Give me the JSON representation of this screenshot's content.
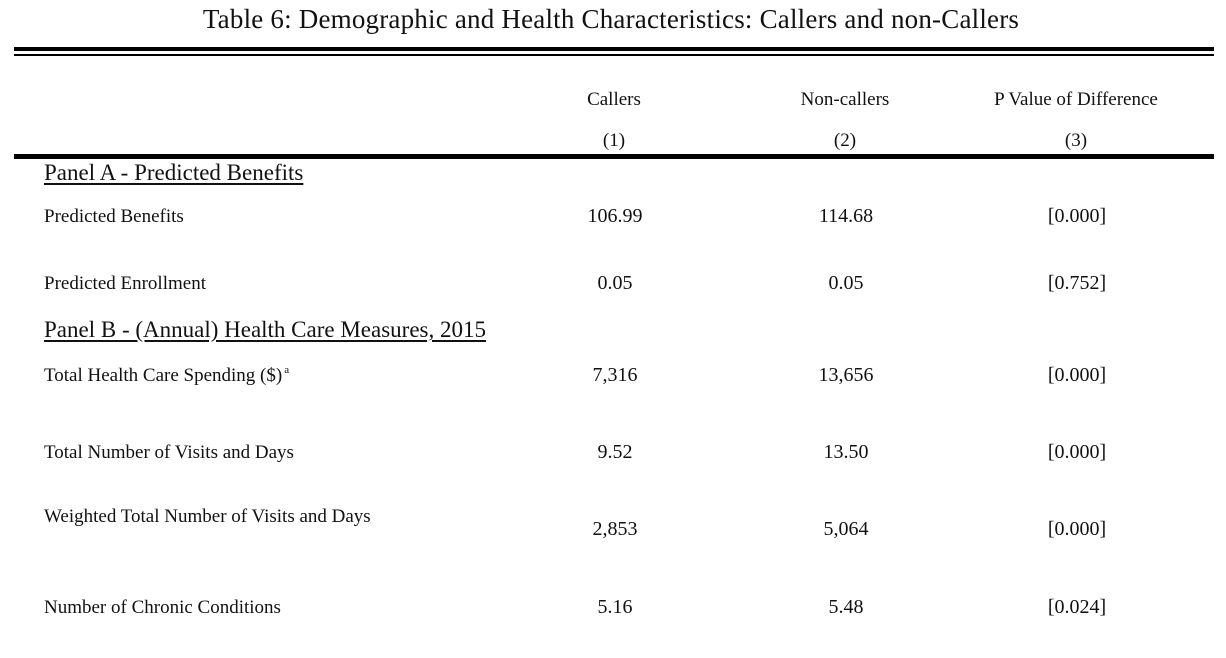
{
  "table": {
    "title": "Table 6: Demographic and Health Characteristics: Callers and non-Callers",
    "columns": [
      {
        "label": "Callers",
        "number": "(1)"
      },
      {
        "label": "Non-callers",
        "number": "(2)"
      },
      {
        "label": "P Value of Difference",
        "number": "(3)"
      }
    ],
    "panel_a": {
      "heading": "Panel A - Predicted Benefits",
      "rows": [
        {
          "label": "Predicted Benefits",
          "values": [
            "106.99",
            "114.68",
            "[0.000]"
          ]
        },
        {
          "label": "Predicted Enrollment",
          "values": [
            "0.05",
            "0.05",
            "[0.752]"
          ]
        }
      ]
    },
    "panel_b": {
      "heading": "Panel B - (Annual) Health Care Measures, 2015",
      "rows": [
        {
          "label": "Total Health Care Spending ($)",
          "sup": "a",
          "values": [
            "7,316",
            "13,656",
            "[0.000]"
          ]
        },
        {
          "label": "Total Number of Visits and Days",
          "values": [
            "9.52",
            "13.50",
            "[0.000]"
          ]
        },
        {
          "label": "Weighted Total Number of Visits and Days",
          "values": [
            "2,853",
            "5,064",
            "[0.000]"
          ]
        },
        {
          "label": "Number of Chronic Conditions",
          "values": [
            "5.16",
            "5.48",
            "[0.024]"
          ]
        }
      ]
    }
  }
}
